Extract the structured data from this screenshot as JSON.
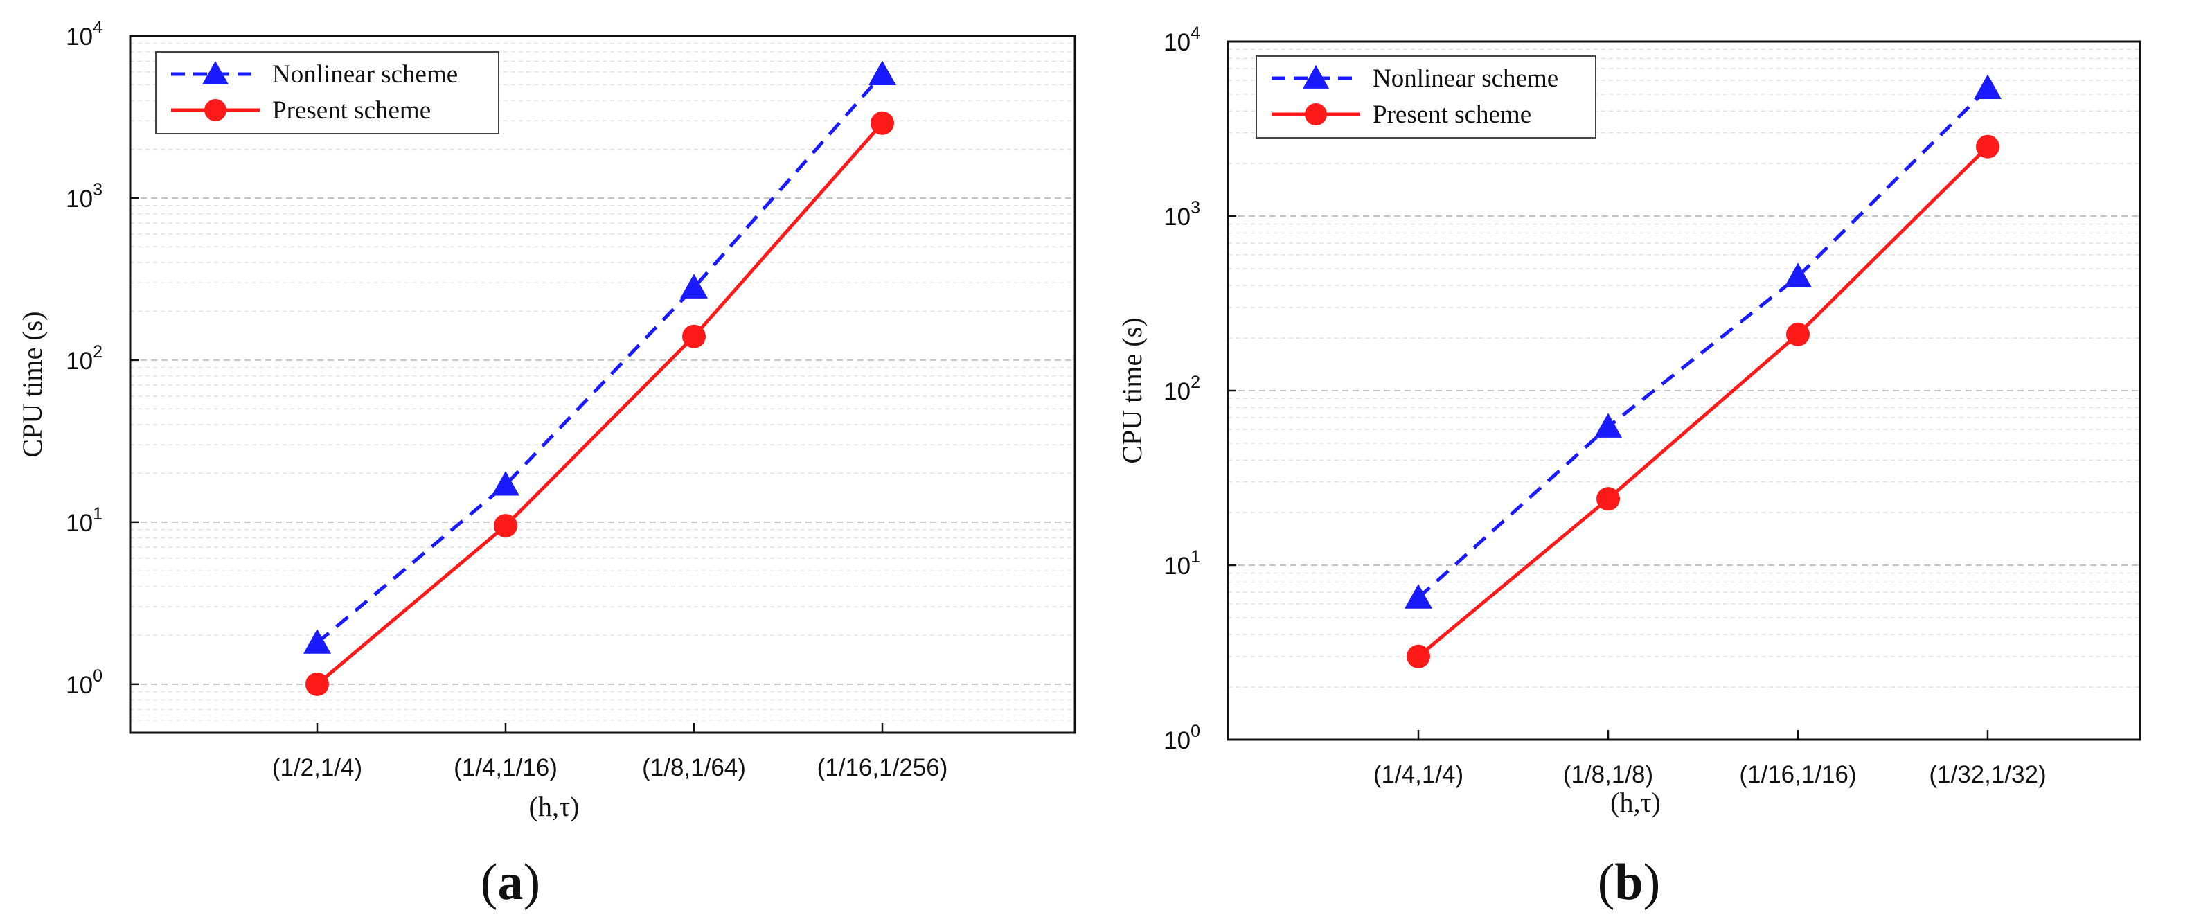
{
  "chart_data": [
    {
      "type": "line",
      "panel_label": "a",
      "xlabel": "(h,τ)",
      "ylabel": "CPU time (s)",
      "yscale": "log",
      "ylim_exp": [
        -0.3,
        4
      ],
      "yticks": [
        {
          "base": "10",
          "exp": "0"
        },
        {
          "base": "10",
          "exp": "1"
        },
        {
          "base": "10",
          "exp": "2"
        },
        {
          "base": "10",
          "exp": "3"
        },
        {
          "base": "10",
          "exp": "4"
        }
      ],
      "categories": [
        "(1/2,1/4)",
        "(1/4,1/16)",
        "(1/8,1/64)",
        "(1/16,1/256)"
      ],
      "legend_position": "top-left",
      "series": [
        {
          "name": "Nonlinear scheme",
          "values": [
            1.8,
            17,
            280,
            5800
          ],
          "color": "#1a1aff",
          "style": "dashed",
          "marker": "triangle"
        },
        {
          "name": "Present scheme",
          "values": [
            1.0,
            9.5,
            140,
            2900
          ],
          "color": "#ff1a1a",
          "style": "solid",
          "marker": "circle"
        }
      ]
    },
    {
      "type": "line",
      "panel_label": "b",
      "xlabel": "(h,τ)",
      "ylabel": "CPU time (s)",
      "yscale": "log",
      "ylim_exp": [
        0,
        4
      ],
      "yticks": [
        {
          "base": "10",
          "exp": "0"
        },
        {
          "base": "10",
          "exp": "1"
        },
        {
          "base": "10",
          "exp": "2"
        },
        {
          "base": "10",
          "exp": "3"
        },
        {
          "base": "10",
          "exp": "4"
        }
      ],
      "categories": [
        "(1/4,1/4)",
        "(1/8,1/8)",
        "(1/16,1/16)",
        "(1/32,1/32)"
      ],
      "legend_position": "top-left",
      "series": [
        {
          "name": "Nonlinear scheme",
          "values": [
            6.5,
            62,
            450,
            5400
          ],
          "color": "#1a1aff",
          "style": "dashed",
          "marker": "triangle"
        },
        {
          "name": "Present scheme",
          "values": [
            3.0,
            24,
            210,
            2500
          ],
          "color": "#ff1a1a",
          "style": "solid",
          "marker": "circle"
        }
      ]
    }
  ]
}
